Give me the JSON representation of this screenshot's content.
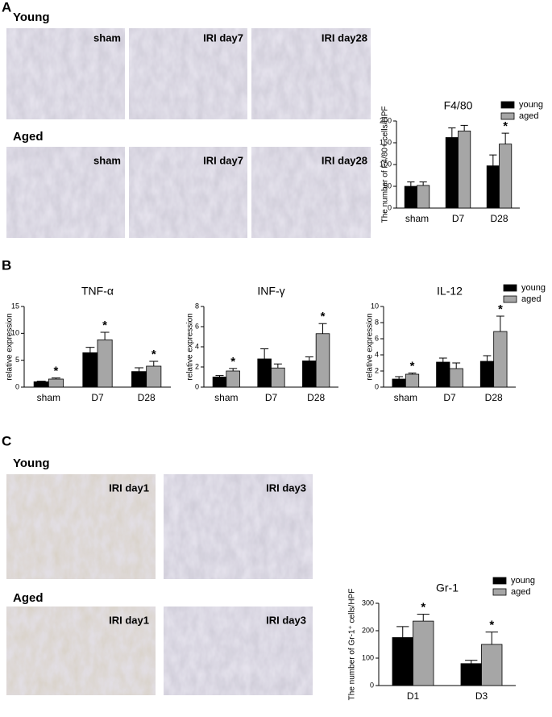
{
  "panels": {
    "A": {
      "label": "A",
      "rows": [
        {
          "label": "Young",
          "images": [
            "sham",
            "IRI day7",
            "IRI day28"
          ]
        },
        {
          "label": "Aged",
          "images": [
            "sham",
            "IRI day7",
            "IRI day28"
          ]
        }
      ]
    },
    "B": {
      "label": "B"
    },
    "C": {
      "label": "C",
      "rows": [
        {
          "label": "Young",
          "images": [
            "IRI day1",
            "IRI day3"
          ]
        },
        {
          "label": "Aged",
          "images": [
            "IRI day1",
            "IRI day3"
          ]
        }
      ]
    }
  },
  "chart_data": [
    {
      "type": "bar",
      "title": "F4/80",
      "ylabel": "The number of F4/80+ cells/HPF",
      "categories": [
        "sham",
        "D7",
        "D28"
      ],
      "ylim": [
        0,
        200
      ],
      "yticks": [
        0,
        50,
        100,
        150,
        200
      ],
      "legend": "upper right",
      "series": [
        {
          "name": "young",
          "color": "#000000",
          "values": [
            50,
            162,
            97
          ],
          "errors": [
            10,
            22,
            25
          ],
          "markers": [
            null,
            null,
            null
          ]
        },
        {
          "name": "aged",
          "color": "#a6a6a6",
          "values": [
            52,
            177,
            147
          ],
          "errors": [
            8,
            13,
            25
          ],
          "markers": [
            null,
            null,
            "*"
          ]
        }
      ]
    },
    {
      "type": "bar",
      "title": "TNF-α",
      "ylabel": "relative expression",
      "categories": [
        "sham",
        "D7",
        "D28"
      ],
      "ylim": [
        0,
        15
      ],
      "yticks": [
        0,
        5,
        10,
        15
      ],
      "series": [
        {
          "name": "young",
          "color": "#000000",
          "values": [
            1.0,
            6.4,
            2.9
          ],
          "errors": [
            0.1,
            1.0,
            0.7
          ],
          "markers": [
            null,
            null,
            null
          ]
        },
        {
          "name": "aged",
          "color": "#a6a6a6",
          "values": [
            1.5,
            8.8,
            3.9
          ],
          "errors": [
            0.2,
            1.4,
            0.9
          ],
          "markers": [
            "*",
            "*",
            "*"
          ]
        }
      ]
    },
    {
      "type": "bar",
      "title": "INF-γ",
      "ylabel": "relative expression",
      "categories": [
        "sham",
        "D7",
        "D28"
      ],
      "ylim": [
        0,
        8
      ],
      "yticks": [
        0,
        2,
        4,
        6,
        8
      ],
      "series": [
        {
          "name": "young",
          "color": "#000000",
          "values": [
            1.0,
            2.8,
            2.6
          ],
          "errors": [
            0.15,
            1.0,
            0.4
          ],
          "markers": [
            null,
            null,
            null
          ]
        },
        {
          "name": "aged",
          "color": "#a6a6a6",
          "values": [
            1.6,
            1.9,
            5.3
          ],
          "errors": [
            0.25,
            0.4,
            1.0
          ],
          "markers": [
            "*",
            null,
            "*"
          ]
        }
      ]
    },
    {
      "type": "bar",
      "title": "IL-12",
      "ylabel": "relative expression",
      "categories": [
        "sham",
        "D7",
        "D28"
      ],
      "ylim": [
        0,
        10
      ],
      "yticks": [
        0,
        2,
        4,
        6,
        8,
        10
      ],
      "legend": "right",
      "series": [
        {
          "name": "young",
          "color": "#000000",
          "values": [
            1.0,
            3.1,
            3.2
          ],
          "errors": [
            0.3,
            0.5,
            0.7
          ],
          "markers": [
            null,
            null,
            null
          ]
        },
        {
          "name": "aged",
          "color": "#a6a6a6",
          "values": [
            1.6,
            2.3,
            6.9
          ],
          "errors": [
            0.15,
            0.7,
            1.9
          ],
          "markers": [
            "*",
            null,
            "*"
          ]
        }
      ]
    },
    {
      "type": "bar",
      "title": "Gr-1",
      "ylabel": "The number of Gr-1⁺ cells/HPF",
      "categories": [
        "D1",
        "D3"
      ],
      "ylim": [
        0,
        300
      ],
      "yticks": [
        0,
        100,
        200,
        300
      ],
      "legend": "upper right",
      "series": [
        {
          "name": "young",
          "color": "#000000",
          "values": [
            175,
            80
          ],
          "errors": [
            40,
            12
          ],
          "markers": [
            null,
            null
          ]
        },
        {
          "name": "aged",
          "color": "#a6a6a6",
          "values": [
            235,
            150
          ],
          "errors": [
            25,
            45
          ],
          "markers": [
            "*",
            "*"
          ]
        }
      ]
    }
  ]
}
